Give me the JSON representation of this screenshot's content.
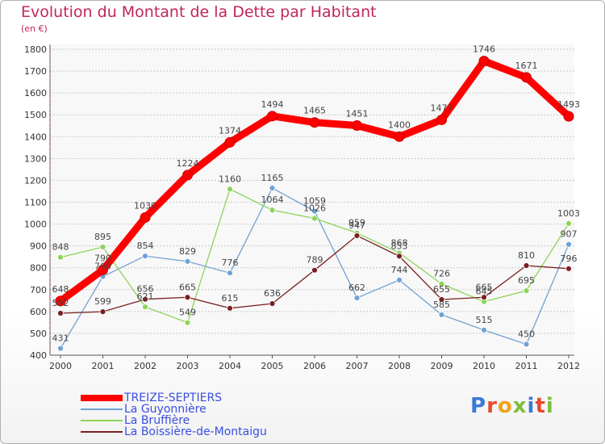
{
  "title": "Evolution du Montant de la Dette par Habitant",
  "subtitle": "(en €)",
  "logo_text": "Proxiti",
  "chart_data": {
    "type": "line",
    "x": [
      "2000",
      "2001",
      "2002",
      "2003",
      "2004",
      "2005",
      "2006",
      "2007",
      "2008",
      "2009",
      "2010",
      "2011",
      "2012"
    ],
    "ylim": [
      400,
      1800
    ],
    "yticks": [
      400,
      500,
      600,
      700,
      800,
      900,
      1000,
      1100,
      1200,
      1300,
      1400,
      1500,
      1600,
      1700,
      1800
    ],
    "grid": "dotted horizontal",
    "legend_placement": "bottom-left",
    "series": [
      {
        "name": "TREIZE-SEPTIERS",
        "color": "#ff0000",
        "values": [
          648,
          790,
          1030,
          1224,
          1374,
          1494,
          1465,
          1451,
          1400,
          1477,
          1746,
          1671,
          1493
        ]
      },
      {
        "name": "La Guyonnière",
        "color": "#6fa2d4",
        "values": [
          431,
          760,
          854,
          829,
          776,
          1165,
          1059,
          662,
          744,
          585,
          515,
          450,
          907
        ]
      },
      {
        "name": "La Bruffière",
        "color": "#8ed35a",
        "values": [
          848,
          895,
          621,
          549,
          1160,
          1064,
          1026,
          959,
          868,
          726,
          645,
          695,
          1003
        ]
      },
      {
        "name": "La Boissière-de-Montaigu",
        "color": "#7a2020",
        "values": [
          592,
          599,
          656,
          665,
          615,
          636,
          789,
          947,
          853,
          655,
          665,
          810,
          796
        ]
      }
    ],
    "data_labels": [
      [
        "648",
        "790",
        "1030",
        "1224",
        "1374",
        "1494",
        "1465",
        "1451",
        "1400",
        "1477",
        "1746",
        "1671",
        "1493"
      ],
      [
        "431",
        "760",
        "854",
        "829",
        "776",
        "1165",
        "1059",
        "662",
        "744",
        "585",
        "515",
        "450",
        "907"
      ],
      [
        "848",
        "895",
        "621",
        "549",
        "1160",
        "1064",
        "1026",
        "959",
        "868",
        "726",
        "645",
        "695",
        "1003"
      ],
      [
        "592",
        "599",
        "656",
        "665",
        "615",
        "636",
        "789",
        "947",
        "853",
        "655",
        "665",
        "810",
        "796"
      ]
    ]
  }
}
